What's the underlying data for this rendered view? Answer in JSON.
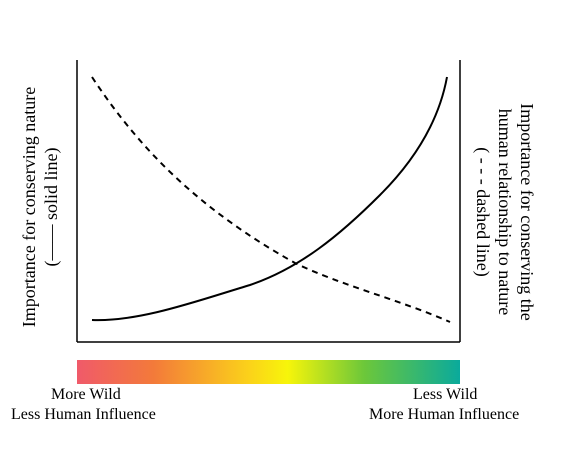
{
  "left_axis_label": {
    "line1": "Importance for conserving nature",
    "line2": "(—— solid line)"
  },
  "right_axis_label": {
    "line1": "Importance for conserving the",
    "line2": "human relationship to nature",
    "line3": "( - - - dashed line)"
  },
  "gradient_bar": {
    "colors": [
      "#f05a6a",
      "#f37a3a",
      "#fbd21a",
      "#f7f50a",
      "#6cc73a",
      "#0aaa9c"
    ],
    "left_label_1": "More Wild",
    "left_label_2": "Less Human Influence",
    "right_label_1": "Less Wild",
    "right_label_2": "More Human Influence"
  }
}
